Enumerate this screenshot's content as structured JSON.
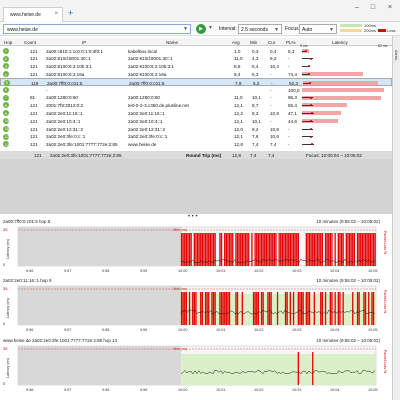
{
  "tab": {
    "label": "www.heise.de",
    "close": "×",
    "new": "+"
  },
  "window": {
    "min": "–",
    "max": "□",
    "close": "×"
  },
  "toolbar": {
    "address": "www.heise.de",
    "play": "▶",
    "interval_label": "Interval:",
    "interval_value": "2.5 seconds",
    "focus_label": "Focus:",
    "focus_value": "Auto"
  },
  "legend": {
    "a": "100ms",
    "b": "200ms",
    "c": "Loss"
  },
  "side_strip": "Alerts",
  "columns": {
    "hop": "Hop",
    "count": "Count",
    "ip": "IP",
    "name": "Name",
    "avg": "Avg",
    "min": "Min",
    "cur": "Cur",
    "pl": "PL%",
    "latency": "Latency",
    "l0": "0 ms",
    "l1": "82 ms"
  },
  "rows": [
    {
      "hop": "1",
      "count": "121",
      "ip": "2a00:c810:1:1c0:0:1:0:4f0:1",
      "name": "kabelbox.local",
      "avg": "1,0",
      "min": "0,3",
      "cur": "0,4",
      "pl": "8,3"
    },
    {
      "hop": "2",
      "count": "121",
      "ip": "2a02:810d:8001:30::1",
      "name": "2a02:810d:8001:30::1",
      "avg": "11,0",
      "min": "4,3",
      "cur": "9,2",
      "pl": "-"
    },
    {
      "hop": "3",
      "count": "121",
      "ip": "2a02:8100:6:2:10b:3:1",
      "name": "2a02:8100:6:2:10b:3:1",
      "avg": "8,8",
      "min": "5,4",
      "cur": "10,4",
      "pl": "-"
    },
    {
      "hop": "4",
      "count": "121",
      "ip": "2a02:8100:6:2:16a",
      "name": "2a02:8100:6:2:16a",
      "avg": "8,4",
      "min": "5,3",
      "cur": "-",
      "pl": "74,4"
    },
    {
      "hop": "5",
      "count": "119",
      "ip": "2a00:7ff0:0:c01:5",
      "name": "2a00:7ff0:0:c01:5",
      "avg": "7,9",
      "min": "5,2",
      "cur": "-",
      "pl": "92,3"
    },
    {
      "hop": "6",
      "count": "",
      "ip": "-",
      "name": "",
      "avg": "",
      "min": "",
      "cur": "-",
      "pl": "100,0"
    },
    {
      "hop": "7",
      "count": "81",
      "ip": "2a00:1280:0:60",
      "name": "2a00:1280:0:60",
      "avg": "11,0",
      "min": "10,1",
      "cur": "-",
      "pl": "96,3"
    },
    {
      "hop": "8",
      "count": "121",
      "ip": "2001:7f8:3012:0:2",
      "name": "te0-0-2-3.c350.de.plusline.net",
      "avg": "12,1",
      "min": "8,7",
      "cur": "-",
      "pl": "55,4"
    },
    {
      "hop": "9",
      "count": "121",
      "ip": "2a02:2e0:11:16::1",
      "name": "2a02:2e0:11:16::1",
      "avg": "12,2",
      "min": "8,3",
      "cur": "10,9",
      "pl": "47,1"
    },
    {
      "hop": "10",
      "count": "121",
      "ip": "2a02:2e0:10:4::1",
      "name": "2a02:2e0:10:4::1",
      "avg": "12,1",
      "min": "10,1",
      "cur": "-",
      "pl": "44,6"
    },
    {
      "hop": "11",
      "count": "121",
      "ip": "2a02:2e0:12:31::2",
      "name": "2a02:2e0:12:31::2",
      "avg": "12,0",
      "min": "9,2",
      "cur": "10,9",
      "pl": "-"
    },
    {
      "hop": "12",
      "count": "121",
      "ip": "2a02:2e0:3fe:0:c::1",
      "name": "2a02:2e0:3fe:0:c::1",
      "avg": "12,1",
      "min": "7,6",
      "cur": "10,6",
      "pl": "-"
    },
    {
      "hop": "13",
      "count": "121",
      "ip": "2a02:2e0:3fe:1001:7777:772e:2:85",
      "name": "www.heise.de",
      "avg": "12,8",
      "min": "7,4",
      "cur": "7,4",
      "pl": "-"
    }
  ],
  "footer": {
    "count": "121",
    "ip": "2a02:2e0:3fe:1001:7777:772e:2:85",
    "label": "Round Trip (ms)",
    "avg": "12,8",
    "min": "7,4",
    "cur": "7,4",
    "focus": "Focus: 10:00:04 – 10:05:02"
  },
  "panels": [
    {
      "title": "2a00:7ff0:0:c01:5 hop 5",
      "range": "10 minutes (9:55:02 – 10:05:02)",
      "yl": "Latency (ms)",
      "yr": "Packet Loss %",
      "ytop": "35",
      "ymid": "0",
      "ticks": [
        "9:56",
        "9:57",
        "9:58",
        "9:59",
        "10:00",
        "10:01",
        "10:02",
        "10:03",
        "10:04",
        "10:05"
      ],
      "jitter": "Jitter (ms)"
    },
    {
      "title": "2a02:2e0:11:16::1 hop 9",
      "range": "10 minutes (9:55:02 – 10:05:02)",
      "yl": "Latency (ms)",
      "yr": "Packet Loss %",
      "ytop": "35",
      "ymid": "0",
      "ticks": [
        "9:56",
        "9:57",
        "9:58",
        "9:59",
        "10:00",
        "10:01",
        "10:02",
        "10:03",
        "10:04",
        "10:05"
      ],
      "jitter": "Jitter (ms)"
    },
    {
      "title": "www.heise.de 2a02:2e0:3fe:1001:7777:772e:2:85 hop 13",
      "range": "10 minutes (9:55:02 – 10:05:02)",
      "yl": "Latency (ms)",
      "yr": "Packet Loss %",
      "ytop": "35",
      "ymid": "0",
      "ticks": [
        "9:56",
        "9:57",
        "9:58",
        "9:59",
        "10:00",
        "10:01",
        "10:02",
        "10:03",
        "10:04",
        "10:05"
      ],
      "jitter": "Jitter (ms)"
    }
  ],
  "colors": {
    "green": "#6db33f",
    "red": "#e60000",
    "pink": "#f4a6a6",
    "select": "#d5e6f6"
  }
}
